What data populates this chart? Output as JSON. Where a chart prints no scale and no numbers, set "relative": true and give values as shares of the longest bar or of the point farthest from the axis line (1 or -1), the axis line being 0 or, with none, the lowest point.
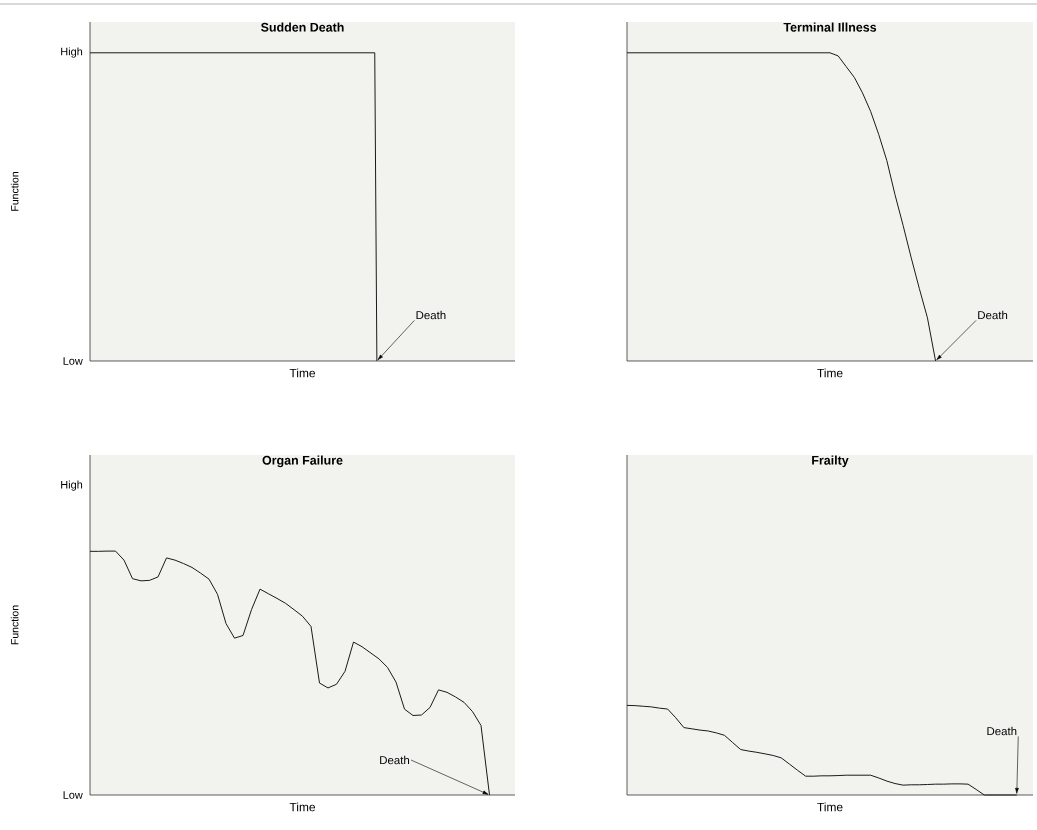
{
  "chart_data": [
    {
      "type": "line",
      "relative": true,
      "title": "Sudden Death",
      "xlabel": "Time",
      "ylabel": "Function",
      "annotations": [
        "Death",
        "High",
        "Low"
      ],
      "categories": [
        null,
        null,
        null,
        null,
        null,
        null,
        null,
        null,
        null,
        null,
        null,
        null,
        null,
        null,
        null,
        null,
        null,
        null,
        null,
        null,
        null,
        null,
        null,
        null,
        null,
        null,
        null,
        null,
        null,
        null,
        null,
        null,
        null,
        null,
        null,
        null,
        null,
        null,
        null,
        null,
        null,
        null,
        null,
        null,
        null,
        null,
        null,
        null,
        null,
        null,
        null,
        null,
        null,
        null,
        null,
        null,
        null,
        null,
        null,
        null,
        null,
        null,
        null,
        null,
        null,
        null,
        null,
        null,
        null,
        null,
        null,
        null,
        null,
        null,
        null,
        null,
        null,
        null,
        null,
        null,
        null,
        null,
        null,
        null,
        null,
        null,
        null,
        null,
        null,
        null,
        null,
        null,
        null,
        null,
        null,
        null,
        null,
        null,
        null,
        null,
        null,
        null,
        null,
        null,
        null,
        null,
        null,
        null,
        null,
        null,
        null,
        null,
        null,
        null,
        null,
        null,
        null,
        null,
        null,
        null,
        null,
        null,
        null,
        null,
        null,
        null,
        null,
        null,
        null,
        null,
        null,
        null,
        null,
        null,
        null,
        null,
        null,
        null,
        null,
        null,
        null,
        null,
        null,
        null,
        null,
        null,
        null,
        null,
        null,
        null,
        null,
        null,
        null,
        null,
        null,
        null,
        null,
        null,
        null,
        null,
        null,
        null,
        null,
        null,
        null,
        null,
        null,
        null,
        null,
        null,
        null,
        null,
        null,
        null,
        null,
        null,
        null,
        null,
        null,
        null,
        null,
        null,
        null,
        null,
        null,
        null,
        null,
        null,
        null,
        null,
        null,
        null,
        null,
        null,
        null,
        null,
        null,
        null,
        null,
        null,
        null
      ],
      "series": [
        {
          "color": "#1a1a1a",
          "values": [
            1,
            1,
            1,
            1,
            1,
            1,
            1,
            1,
            1,
            1,
            1,
            1,
            1,
            1,
            1,
            1,
            1,
            1,
            1,
            1,
            1,
            1,
            1,
            1,
            1,
            1,
            1,
            1,
            1,
            1,
            1,
            1,
            1,
            1,
            1,
            1,
            1,
            1,
            1,
            1,
            1,
            1,
            1,
            1,
            1,
            1,
            1,
            1,
            1,
            1,
            1,
            1,
            1,
            1,
            1,
            1,
            1,
            1,
            1,
            1,
            1,
            1,
            1,
            1,
            1,
            1,
            1,
            1,
            1,
            1,
            1,
            1,
            1,
            1,
            1,
            1,
            1,
            1,
            1,
            1,
            1,
            1,
            1,
            1,
            1,
            1,
            1,
            1,
            1,
            1,
            1,
            1,
            1,
            1,
            1,
            1,
            1,
            1,
            1,
            1,
            1,
            1,
            1,
            1,
            1,
            1,
            1,
            1,
            1,
            1,
            1,
            1,
            1,
            1,
            1,
            1,
            1,
            1,
            1,
            1,
            1,
            1,
            1,
            1,
            1,
            1,
            1,
            1,
            1,
            1,
            1,
            1,
            1,
            1,
            1,
            0,
            null,
            null,
            null,
            null,
            null,
            null,
            null,
            null,
            null,
            null,
            null,
            null,
            null,
            null,
            null,
            null,
            null,
            null,
            null,
            null,
            null,
            null,
            null,
            null,
            null,
            null,
            null,
            null,
            null,
            null,
            null,
            null,
            null,
            null,
            null,
            null,
            null,
            null,
            null,
            null,
            null,
            null,
            null,
            null,
            null,
            null,
            null,
            null,
            null,
            null,
            null,
            null,
            null,
            null,
            null,
            null,
            null,
            null,
            null,
            null,
            null,
            null,
            null,
            null,
            null
          ]
        }
      ]
    },
    {
      "type": "line",
      "relative": true,
      "title": "Terminal Illness",
      "xlabel": "Time",
      "annotations": [
        "Death"
      ],
      "categories": [
        null,
        null,
        null,
        null,
        null,
        null,
        null,
        null,
        null,
        null,
        null,
        null,
        null,
        null,
        null,
        null,
        null,
        null,
        null,
        null,
        null,
        null,
        null,
        null,
        null,
        null,
        null,
        null,
        null,
        null,
        null,
        null,
        null,
        null,
        null,
        null,
        null,
        null,
        null,
        null,
        null,
        null,
        null,
        null,
        null,
        null,
        null,
        null,
        null,
        null,
        null
      ],
      "series": [
        {
          "color": "#1a1a1a",
          "values": [
            1,
            1,
            1,
            1,
            1,
            1,
            1,
            1,
            1,
            1,
            1,
            1,
            1,
            1,
            1,
            1,
            1,
            1,
            1,
            1,
            1,
            1,
            1,
            1,
            1,
            1,
            0.99,
            0.955,
            0.92,
            0.87,
            0.81,
            0.735,
            0.65,
            0.54,
            0.44,
            0.335,
            0.235,
            0.14,
            0,
            null,
            null,
            null,
            null,
            null,
            null,
            null,
            null,
            null,
            null,
            null,
            null
          ]
        }
      ]
    },
    {
      "type": "line",
      "relative": true,
      "title": "Organ Failure",
      "xlabel": "Time",
      "ylabel": "Function",
      "annotations": [
        "Death",
        "High",
        "Low"
      ],
      "categories": [
        null,
        null,
        null,
        null,
        null,
        null,
        null,
        null,
        null,
        null,
        null,
        null,
        null,
        null,
        null,
        null,
        null,
        null,
        null,
        null,
        null,
        null,
        null,
        null,
        null,
        null,
        null,
        null,
        null,
        null,
        null,
        null,
        null,
        null,
        null,
        null,
        null,
        null,
        null,
        null,
        null,
        null,
        null,
        null,
        null,
        null,
        null,
        null,
        null,
        null,
        null
      ],
      "series": [
        {
          "color": "#1a1a1a",
          "values": [
            0.999,
            0.999,
            1,
            1,
            0.963,
            0.887,
            0.878,
            0.88,
            0.894,
            0.972,
            0.963,
            0.949,
            0.933,
            0.91,
            0.885,
            0.823,
            0.703,
            0.643,
            0.654,
            0.76,
            0.844,
            0.825,
            0.806,
            0.786,
            0.76,
            0.733,
            0.691,
            0.459,
            0.439,
            0.454,
            0.507,
            0.627,
            0.608,
            0.583,
            0.558,
            0.523,
            0.463,
            0.352,
            0.326,
            0.328,
            0.359,
            0.431,
            0.421,
            0.402,
            0.38,
            0.342,
            0.285,
            0,
            null,
            null,
            null
          ]
        }
      ]
    },
    {
      "type": "line",
      "relative": true,
      "title": "Frailty",
      "xlabel": "Time",
      "annotations": [
        "Death"
      ],
      "categories": [
        null,
        null,
        null,
        null,
        null,
        null,
        null,
        null,
        null,
        null,
        null,
        null,
        null,
        null,
        null,
        null,
        null,
        null,
        null,
        null,
        null,
        null,
        null,
        null,
        null,
        null,
        null,
        null,
        null,
        null,
        null,
        null,
        null,
        null,
        null,
        null,
        null,
        null,
        null,
        null,
        null,
        null,
        null,
        null,
        null,
        null,
        null,
        null,
        null,
        null,
        null
      ],
      "series": [
        {
          "color": "#1a1a1a",
          "values": [
            1,
            0.997,
            0.99,
            0.983,
            0.969,
            0.959,
            0.862,
            0.752,
            0.738,
            0.724,
            0.714,
            0.693,
            0.666,
            0.586,
            0.507,
            0.49,
            0.476,
            0.459,
            0.441,
            0.414,
            0.345,
            0.276,
            0.21,
            0.21,
            0.214,
            0.214,
            0.217,
            0.221,
            0.221,
            0.221,
            0.221,
            0.19,
            0.155,
            0.128,
            0.11,
            0.114,
            0.114,
            0.117,
            0.121,
            0.121,
            0.124,
            0.124,
            0.121,
            0.062,
            0,
            0,
            0,
            0,
            0,
            null,
            null
          ]
        }
      ]
    }
  ]
}
